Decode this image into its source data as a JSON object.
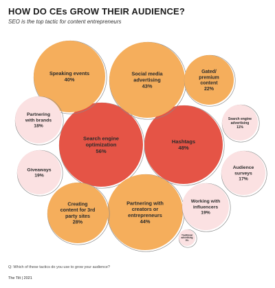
{
  "header": {
    "title": "HOW DO CEs GROW THEIR AUDIENCE?",
    "subtitle": "SEO is the top tactic for content entrepreneurs"
  },
  "footer": {
    "question": "Q: Which of these tactics do you use to grow your audience?",
    "source": "The Tilt  |  2021"
  },
  "colors": {
    "top": "#e55446",
    "high": "#f5ae5c",
    "low": "#fbe1e2",
    "outline": "#8a8a8a"
  },
  "chart_data": {
    "type": "bubble",
    "title": "HOW DO CEs GROW THEIR AUDIENCE?",
    "subtitle": "SEO is the top tactic for content entrepreneurs",
    "unit": "%",
    "series": [
      {
        "label": [
          "Search engine",
          "optimization"
        ],
        "value": 56,
        "tier": "top"
      },
      {
        "label": [
          "Hashtags"
        ],
        "value": 48,
        "tier": "top"
      },
      {
        "label": [
          "Partnering with",
          "creators or",
          "entrepreneurs"
        ],
        "value": 44,
        "tier": "high"
      },
      {
        "label": [
          "Social media",
          "advertising"
        ],
        "value": 43,
        "tier": "high"
      },
      {
        "label": [
          "Speaking events"
        ],
        "value": 40,
        "tier": "high"
      },
      {
        "label": [
          "Creating",
          "content for 3rd",
          "party sites"
        ],
        "value": 28,
        "tier": "high"
      },
      {
        "label": [
          "Gated/",
          "premium",
          "content"
        ],
        "value": 22,
        "tier": "high"
      },
      {
        "label": [
          "Working with",
          "influencers"
        ],
        "value": 19,
        "tier": "low"
      },
      {
        "label": [
          "Giveaways"
        ],
        "value": 19,
        "tier": "low"
      },
      {
        "label": [
          "Partnering",
          "with brands"
        ],
        "value": 18,
        "tier": "low"
      },
      {
        "label": [
          "Audience",
          "surveys"
        ],
        "value": 17,
        "tier": "low"
      },
      {
        "label": [
          "Search engine",
          "advertising"
        ],
        "value": 11,
        "tier": "low"
      },
      {
        "label": [
          "Traditional",
          "advertising"
        ],
        "value": 5,
        "tier": "low"
      }
    ]
  }
}
